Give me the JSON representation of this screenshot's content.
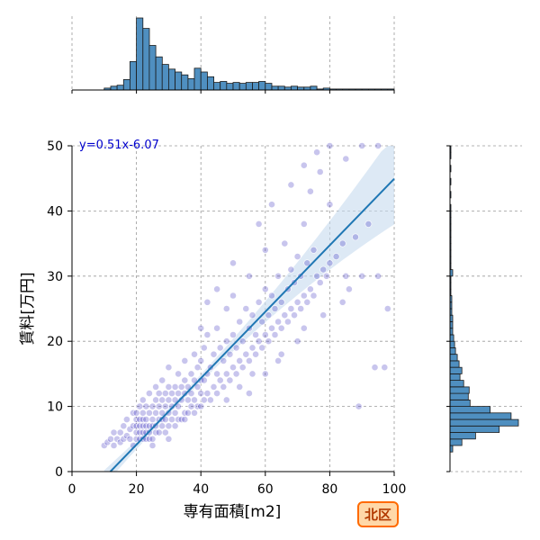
{
  "chart_data": {
    "type": "scatter",
    "title": "",
    "xlabel": "専有面積[m2]",
    "ylabel": "賃料[万円]",
    "xlim": [
      0,
      100
    ],
    "ylim": [
      0,
      50
    ],
    "x_ticks": [
      0,
      20,
      40,
      60,
      80,
      100
    ],
    "y_ticks": [
      0,
      10,
      20,
      30,
      40,
      50
    ],
    "grid": true,
    "annotation": "y=0.51x-6.07",
    "badge": "北区",
    "regression": {
      "slope": 0.51,
      "intercept": -6.07
    },
    "colors": {
      "points": "#3a2fc0",
      "regression_line": "#1f77b4",
      "confidence_band": "#c6dbef",
      "histogram_bar": "#4f8fc0",
      "badge_fill": "#ffd8a8",
      "badge_border": "#ff6a00"
    },
    "top_histogram": {
      "bin_width": 2,
      "bins": [
        {
          "x": 10,
          "count": 2
        },
        {
          "x": 12,
          "count": 4
        },
        {
          "x": 14,
          "count": 5
        },
        {
          "x": 16,
          "count": 11
        },
        {
          "x": 18,
          "count": 30
        },
        {
          "x": 20,
          "count": 76
        },
        {
          "x": 22,
          "count": 65
        },
        {
          "x": 24,
          "count": 47
        },
        {
          "x": 26,
          "count": 35
        },
        {
          "x": 28,
          "count": 27
        },
        {
          "x": 30,
          "count": 22
        },
        {
          "x": 32,
          "count": 19
        },
        {
          "x": 34,
          "count": 16
        },
        {
          "x": 36,
          "count": 12
        },
        {
          "x": 38,
          "count": 23
        },
        {
          "x": 40,
          "count": 19
        },
        {
          "x": 42,
          "count": 14
        },
        {
          "x": 44,
          "count": 8
        },
        {
          "x": 46,
          "count": 9
        },
        {
          "x": 48,
          "count": 7
        },
        {
          "x": 50,
          "count": 8
        },
        {
          "x": 52,
          "count": 7
        },
        {
          "x": 54,
          "count": 8
        },
        {
          "x": 56,
          "count": 8
        },
        {
          "x": 58,
          "count": 9
        },
        {
          "x": 60,
          "count": 7
        },
        {
          "x": 62,
          "count": 4
        },
        {
          "x": 64,
          "count": 4
        },
        {
          "x": 66,
          "count": 3
        },
        {
          "x": 68,
          "count": 4
        },
        {
          "x": 70,
          "count": 3
        },
        {
          "x": 72,
          "count": 3
        },
        {
          "x": 74,
          "count": 4
        },
        {
          "x": 76,
          "count": 1
        },
        {
          "x": 78,
          "count": 2
        },
        {
          "x": 80,
          "count": 1
        },
        {
          "x": 82,
          "count": 1
        },
        {
          "x": 84,
          "count": 1
        },
        {
          "x": 86,
          "count": 1
        },
        {
          "x": 88,
          "count": 1
        },
        {
          "x": 90,
          "count": 1
        },
        {
          "x": 92,
          "count": 1
        },
        {
          "x": 94,
          "count": 1
        },
        {
          "x": 96,
          "count": 1
        },
        {
          "x": 98,
          "count": 1
        }
      ]
    },
    "right_histogram": {
      "bin_width": 1,
      "bins": [
        {
          "y": 3,
          "count": 3
        },
        {
          "y": 4,
          "count": 13
        },
        {
          "y": 5,
          "count": 28
        },
        {
          "y": 6,
          "count": 54
        },
        {
          "y": 7,
          "count": 75
        },
        {
          "y": 8,
          "count": 67
        },
        {
          "y": 9,
          "count": 44
        },
        {
          "y": 10,
          "count": 22
        },
        {
          "y": 11,
          "count": 20
        },
        {
          "y": 12,
          "count": 21
        },
        {
          "y": 13,
          "count": 15
        },
        {
          "y": 14,
          "count": 11
        },
        {
          "y": 15,
          "count": 13
        },
        {
          "y": 16,
          "count": 10
        },
        {
          "y": 17,
          "count": 8
        },
        {
          "y": 18,
          "count": 6
        },
        {
          "y": 19,
          "count": 5
        },
        {
          "y": 20,
          "count": 4
        },
        {
          "y": 21,
          "count": 3
        },
        {
          "y": 22,
          "count": 3
        },
        {
          "y": 23,
          "count": 3
        },
        {
          "y": 24,
          "count": 2
        },
        {
          "y": 25,
          "count": 2
        },
        {
          "y": 26,
          "count": 2
        },
        {
          "y": 27,
          "count": 1
        },
        {
          "y": 28,
          "count": 1
        },
        {
          "y": 29,
          "count": 1
        },
        {
          "y": 30,
          "count": 3
        },
        {
          "y": 31,
          "count": 1
        },
        {
          "y": 32,
          "count": 1
        },
        {
          "y": 33,
          "count": 1
        },
        {
          "y": 34,
          "count": 1
        },
        {
          "y": 35,
          "count": 1
        },
        {
          "y": 36,
          "count": 1
        },
        {
          "y": 37,
          "count": 1
        },
        {
          "y": 38,
          "count": 1
        },
        {
          "y": 39,
          "count": 1
        },
        {
          "y": 40,
          "count": 1
        },
        {
          "y": 42,
          "count": 1
        },
        {
          "y": 44,
          "count": 1
        },
        {
          "y": 46,
          "count": 1
        },
        {
          "y": 48,
          "count": 1
        },
        {
          "y": 49,
          "count": 1
        }
      ]
    },
    "points": [
      [
        10,
        4
      ],
      [
        11,
        4.5
      ],
      [
        12,
        5
      ],
      [
        13,
        4
      ],
      [
        13,
        6
      ],
      [
        14,
        5
      ],
      [
        15,
        4.5
      ],
      [
        15,
        6
      ],
      [
        16,
        5
      ],
      [
        16,
        7
      ],
      [
        17,
        5.5
      ],
      [
        17,
        8
      ],
      [
        18,
        5
      ],
      [
        18,
        6.5
      ],
      [
        19,
        4
      ],
      [
        19,
        7
      ],
      [
        19,
        9
      ],
      [
        20,
        5
      ],
      [
        20,
        6
      ],
      [
        20,
        7
      ],
      [
        20,
        8
      ],
      [
        20,
        9
      ],
      [
        21,
        5
      ],
      [
        21,
        6
      ],
      [
        21,
        7
      ],
      [
        21,
        8
      ],
      [
        21,
        10
      ],
      [
        22,
        5
      ],
      [
        22,
        6
      ],
      [
        22,
        7
      ],
      [
        22,
        8
      ],
      [
        22,
        9
      ],
      [
        22,
        11
      ],
      [
        23,
        5
      ],
      [
        23,
        6
      ],
      [
        23,
        7
      ],
      [
        23,
        8
      ],
      [
        23,
        10
      ],
      [
        24,
        5
      ],
      [
        24,
        6
      ],
      [
        24,
        7
      ],
      [
        24,
        9
      ],
      [
        24,
        12
      ],
      [
        25,
        5
      ],
      [
        25,
        7
      ],
      [
        25,
        8
      ],
      [
        25,
        10
      ],
      [
        26,
        6
      ],
      [
        26,
        7
      ],
      [
        26,
        9
      ],
      [
        26,
        11
      ],
      [
        26,
        13
      ],
      [
        27,
        6
      ],
      [
        27,
        8
      ],
      [
        27,
        10
      ],
      [
        27,
        12
      ],
      [
        28,
        7
      ],
      [
        28,
        8
      ],
      [
        28,
        9
      ],
      [
        28,
        11
      ],
      [
        28,
        14
      ],
      [
        29,
        6
      ],
      [
        29,
        8
      ],
      [
        29,
        10
      ],
      [
        29,
        12
      ],
      [
        30,
        7
      ],
      [
        30,
        9
      ],
      [
        30,
        11
      ],
      [
        30,
        13
      ],
      [
        30,
        16
      ],
      [
        31,
        8
      ],
      [
        31,
        10
      ],
      [
        31,
        12
      ],
      [
        32,
        7
      ],
      [
        32,
        9
      ],
      [
        32,
        11
      ],
      [
        32,
        13
      ],
      [
        33,
        8
      ],
      [
        33,
        10
      ],
      [
        33,
        12
      ],
      [
        33,
        15
      ],
      [
        34,
        8
      ],
      [
        34,
        11
      ],
      [
        34,
        13
      ],
      [
        35,
        9
      ],
      [
        35,
        12
      ],
      [
        35,
        14
      ],
      [
        35,
        17
      ],
      [
        36,
        9
      ],
      [
        36,
        11
      ],
      [
        36,
        13
      ],
      [
        37,
        10
      ],
      [
        37,
        12
      ],
      [
        37,
        15
      ],
      [
        38,
        9
      ],
      [
        38,
        11
      ],
      [
        38,
        14
      ],
      [
        38,
        18
      ],
      [
        39,
        10
      ],
      [
        39,
        13
      ],
      [
        39,
        16
      ],
      [
        40,
        10
      ],
      [
        40,
        12
      ],
      [
        40,
        14
      ],
      [
        40,
        17
      ],
      [
        41,
        11
      ],
      [
        41,
        14
      ],
      [
        41,
        19
      ],
      [
        42,
        12
      ],
      [
        42,
        15
      ],
      [
        42,
        21
      ],
      [
        43,
        11
      ],
      [
        43,
        16
      ],
      [
        44,
        13
      ],
      [
        44,
        18
      ],
      [
        45,
        12
      ],
      [
        45,
        15
      ],
      [
        45,
        22
      ],
      [
        46,
        14
      ],
      [
        46,
        19
      ],
      [
        47,
        13
      ],
      [
        47,
        17
      ],
      [
        48,
        15
      ],
      [
        48,
        20
      ],
      [
        48,
        25
      ],
      [
        49,
        14
      ],
      [
        49,
        18
      ],
      [
        50,
        16
      ],
      [
        50,
        21
      ],
      [
        50,
        27
      ],
      [
        51,
        15
      ],
      [
        51,
        19
      ],
      [
        52,
        17
      ],
      [
        52,
        23
      ],
      [
        53,
        16
      ],
      [
        53,
        20
      ],
      [
        54,
        18
      ],
      [
        54,
        25
      ],
      [
        55,
        17
      ],
      [
        55,
        22
      ],
      [
        55,
        30
      ],
      [
        56,
        19
      ],
      [
        56,
        24
      ],
      [
        57,
        18
      ],
      [
        57,
        21
      ],
      [
        58,
        20
      ],
      [
        58,
        26
      ],
      [
        59,
        19
      ],
      [
        59,
        23
      ],
      [
        60,
        21
      ],
      [
        60,
        28
      ],
      [
        60,
        34
      ],
      [
        61,
        20
      ],
      [
        61,
        24
      ],
      [
        62,
        22
      ],
      [
        62,
        27
      ],
      [
        63,
        21
      ],
      [
        63,
        25
      ],
      [
        64,
        23
      ],
      [
        64,
        30
      ],
      [
        65,
        22
      ],
      [
        65,
        26
      ],
      [
        66,
        24
      ],
      [
        66,
        35
      ],
      [
        67,
        23
      ],
      [
        67,
        28
      ],
      [
        68,
        25
      ],
      [
        68,
        31
      ],
      [
        69,
        24
      ],
      [
        69,
        29
      ],
      [
        70,
        26
      ],
      [
        70,
        33
      ],
      [
        71,
        25
      ],
      [
        71,
        30
      ],
      [
        72,
        27
      ],
      [
        72,
        38
      ],
      [
        73,
        26
      ],
      [
        73,
        32
      ],
      [
        74,
        28
      ],
      [
        74,
        43
      ],
      [
        75,
        27
      ],
      [
        75,
        34
      ],
      [
        76,
        30
      ],
      [
        77,
        29
      ],
      [
        77,
        46
      ],
      [
        78,
        31
      ],
      [
        79,
        30
      ],
      [
        80,
        32
      ],
      [
        80,
        41
      ],
      [
        82,
        33
      ],
      [
        84,
        35
      ],
      [
        85,
        30
      ],
      [
        86,
        28
      ],
      [
        88,
        36
      ],
      [
        89,
        10
      ],
      [
        90,
        30
      ],
      [
        92,
        38
      ],
      [
        94,
        16
      ],
      [
        95,
        30
      ],
      [
        97,
        16
      ],
      [
        98,
        25
      ],
      [
        55,
        12
      ],
      [
        60,
        15
      ],
      [
        65,
        18
      ],
      [
        70,
        20
      ],
      [
        45,
        28
      ],
      [
        50,
        32
      ],
      [
        58,
        38
      ],
      [
        62,
        41
      ],
      [
        68,
        44
      ],
      [
        72,
        47
      ],
      [
        76,
        49
      ],
      [
        80,
        50
      ],
      [
        85,
        48
      ],
      [
        90,
        50
      ],
      [
        95,
        50
      ],
      [
        40,
        22
      ],
      [
        42,
        26
      ],
      [
        35,
        8
      ],
      [
        30,
        5
      ],
      [
        25,
        4
      ],
      [
        48,
        11
      ],
      [
        52,
        13
      ],
      [
        56,
        15
      ],
      [
        64,
        17
      ],
      [
        72,
        22
      ],
      [
        78,
        24
      ],
      [
        84,
        26
      ]
    ]
  }
}
